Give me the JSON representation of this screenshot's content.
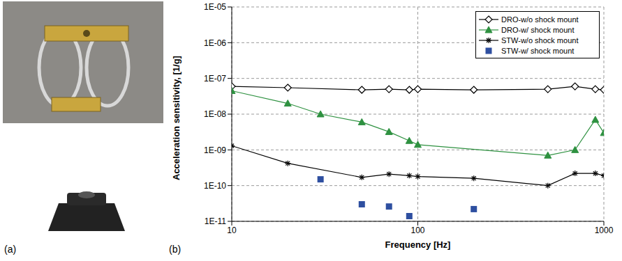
{
  "panel_labels": [
    "(a)",
    "(b)"
  ],
  "chart_data": {
    "type": "scatter",
    "x_label": "Frequency [Hz]",
    "y_label": "Acceleration sensitivity, [1/g]",
    "log": true,
    "grid": true,
    "legend": "top-right",
    "xlim": [
      10,
      1000
    ],
    "xticks": [
      10,
      100,
      1000
    ],
    "ylim": [
      1e-11,
      1e-05
    ],
    "yticks": [
      {
        "value": 1e-11,
        "label": "1E-11"
      },
      {
        "value": 1e-10,
        "label": "1E-10"
      },
      {
        "value": 1e-09,
        "label": "1E-09"
      },
      {
        "value": 1e-08,
        "label": "1E-08"
      },
      {
        "value": 1e-07,
        "label": "1E-07"
      },
      {
        "value": 1e-06,
        "label": "1E-06"
      },
      {
        "value": 1e-05,
        "label": "1E-05"
      }
    ],
    "series": [
      {
        "name": "DRO-w/o shock mount",
        "color": "#000000",
        "marker": "open_diamond",
        "line_style": "solid",
        "x": [
          10,
          20,
          50,
          70,
          90,
          100,
          200,
          500,
          700,
          900,
          1000
        ],
        "values": [
          6e-08,
          5.5e-08,
          4.8e-08,
          5e-08,
          4.8e-08,
          5e-08,
          4.8e-08,
          5e-08,
          6e-08,
          5e-08,
          4.8e-08
        ]
      },
      {
        "name": "DRO-w/ shock mount",
        "color": "#2e9140",
        "marker": "triangle",
        "line_style": "solid",
        "x": [
          10,
          20,
          30,
          50,
          70,
          90,
          100,
          500,
          700,
          900,
          1000
        ],
        "values": [
          4.5e-08,
          2e-08,
          1e-08,
          6e-09,
          3.2e-09,
          1.8e-09,
          1.4e-09,
          7e-10,
          1e-09,
          7e-09,
          3e-09
        ]
      },
      {
        "name": "STW-w/o shock mount",
        "color": "#000000",
        "marker": "asterisk",
        "line_style": "solid",
        "x": [
          10,
          20,
          50,
          70,
          90,
          100,
          200,
          500,
          700,
          900,
          1000
        ],
        "values": [
          1.3e-09,
          4.2e-10,
          1.7e-10,
          2.1e-10,
          1.9e-10,
          1.8e-10,
          1.6e-10,
          1e-10,
          2.2e-10,
          2.2e-10,
          1.9e-10
        ]
      },
      {
        "name": "STW-w/ shock mount",
        "color": "#2e4fa0",
        "marker": "square",
        "line_style": "none",
        "x": [
          30,
          50,
          70,
          90,
          200
        ],
        "values": [
          1.5e-10,
          3e-11,
          2.6e-11,
          1.4e-11,
          2.2e-11
        ]
      }
    ]
  }
}
